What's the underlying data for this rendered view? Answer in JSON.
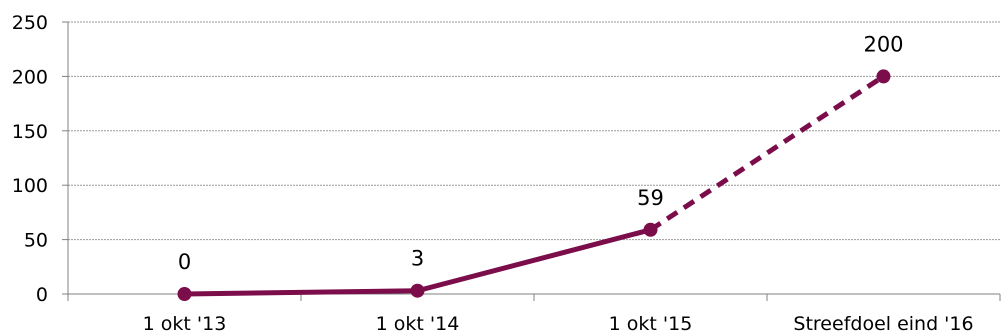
{
  "chart_data": {
    "type": "line",
    "categories": [
      "1 okt '13",
      "1 okt '14",
      "1 okt '15",
      "Streefdoel eind '16"
    ],
    "values": [
      0,
      3,
      59,
      200
    ],
    "data_labels": [
      "0",
      "3",
      "59",
      "200"
    ],
    "dashed_from_index": 2,
    "ylim": [
      0,
      250
    ],
    "yticks": [
      0,
      50,
      100,
      150,
      200,
      250
    ],
    "ytick_labels": [
      "0",
      "50",
      "100",
      "150",
      "200",
      "250"
    ],
    "grid": true,
    "legend": "none",
    "title": "",
    "xlabel": "",
    "ylabel": "",
    "colors": {
      "line": "#7B0D4A",
      "grid": "#999999",
      "axis": "#808080"
    }
  }
}
